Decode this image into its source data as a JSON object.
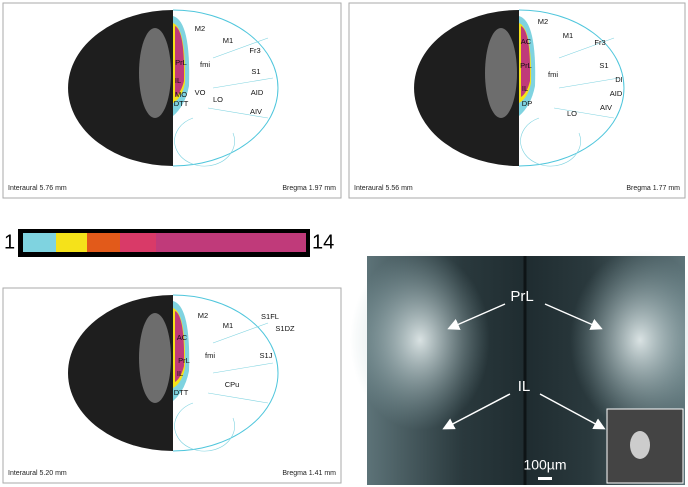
{
  "panels": [
    {
      "labels": [
        "M2",
        "M1",
        "Fr3",
        "PrL",
        "fmi",
        "S1",
        "IL",
        "AID",
        "MO",
        "VO",
        "LO",
        "DTT",
        "AIV"
      ],
      "interaural": "Interaural 5.76 mm",
      "bregma": "Bregma 1.97 mm"
    },
    {
      "labels": [
        "M2",
        "M1",
        "AC",
        "Fr3",
        "PrL",
        "S1",
        "fmi",
        "DI",
        "IL",
        "AID",
        "DP",
        "AIV",
        "LO"
      ],
      "interaural": "Interaural 5.56 mm",
      "bregma": "Bregma 1.77 mm"
    },
    {
      "labels": [
        "M2",
        "S1FL",
        "M1",
        "S1DZ",
        "AC",
        "fmi",
        "S1J",
        "PrL",
        "IL",
        "CPu",
        "DTT"
      ],
      "interaural": "Interaural 5.20 mm",
      "bregma": "Bregma 1.41 mm"
    }
  ],
  "colorbar": {
    "min_label": "1",
    "max_label": "14"
  },
  "micrograph": {
    "labels": [
      "PrL",
      "IL"
    ],
    "scale_bar": "100µm"
  }
}
